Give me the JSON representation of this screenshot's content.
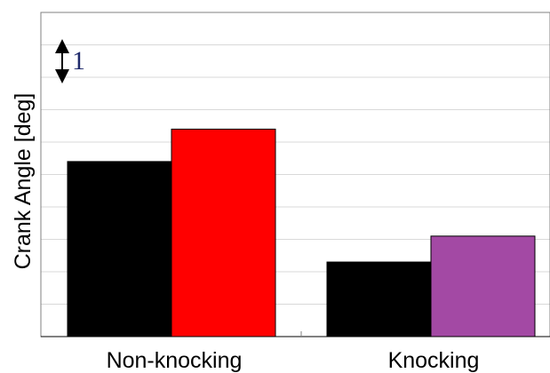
{
  "chart_data": {
    "type": "bar",
    "categories": [
      "Non-knocking",
      "Knocking"
    ],
    "category_colors": [
      [
        "#000000",
        "#ff0000"
      ],
      [
        "#000000",
        "#a349a4"
      ]
    ],
    "values": [
      [
        5.4,
        6.4
      ],
      [
        2.3,
        3.1
      ]
    ],
    "ylim": [
      0,
      10
    ],
    "ylabel": "Crank Angle [deg]",
    "xlabel": "",
    "title": "",
    "grid": true,
    "scale_indicator": {
      "label": "1",
      "units": 1
    }
  }
}
